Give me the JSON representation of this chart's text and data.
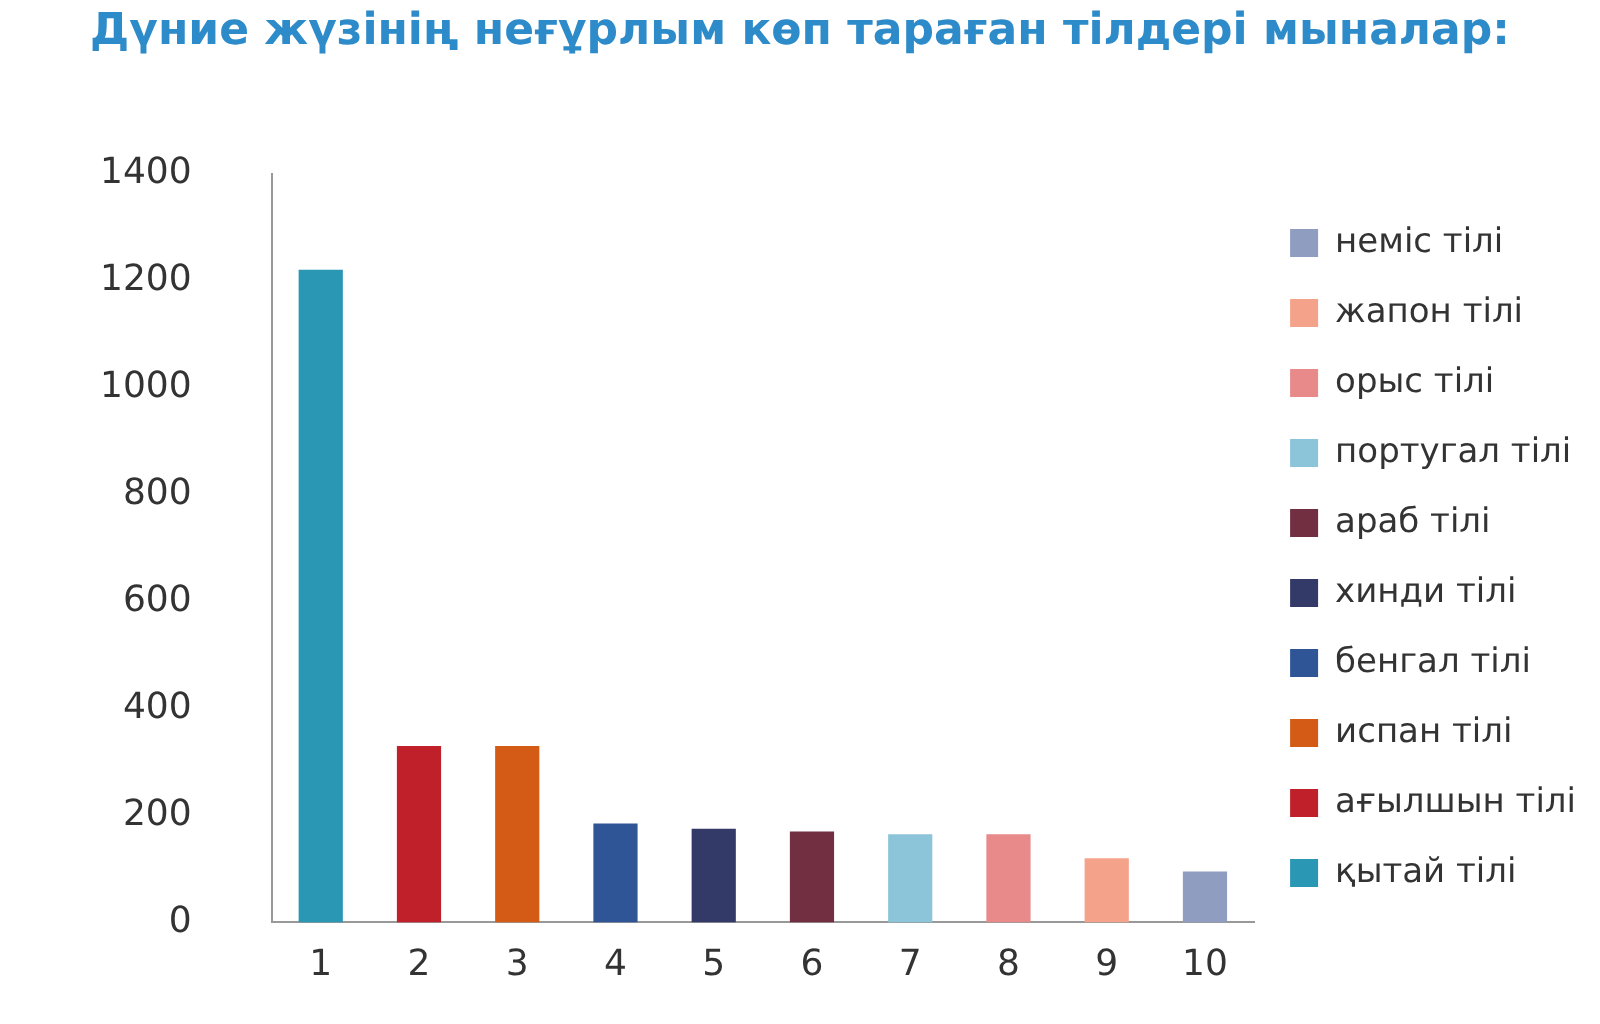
{
  "chart_data": {
    "type": "bar",
    "title": "Дүние жүзінің неғұрлым көп тараған тілдері мыналар:",
    "categories": [
      "1",
      "2",
      "3",
      "4",
      "5",
      "6",
      "7",
      "8",
      "9",
      "10"
    ],
    "series": [
      {
        "name": "қытай тілі",
        "color": "#2a97b5",
        "values": [
          1220,
          null,
          null,
          null,
          null,
          null,
          null,
          null,
          null,
          null
        ]
      },
      {
        "name": "ағылшын тілі",
        "color": "#c0202a",
        "values": [
          null,
          330,
          null,
          null,
          null,
          null,
          null,
          null,
          null,
          null
        ]
      },
      {
        "name": "испан тілі",
        "color": "#d45b16",
        "values": [
          null,
          null,
          330,
          null,
          null,
          null,
          null,
          null,
          null,
          null
        ]
      },
      {
        "name": "бенгал тілі",
        "color": "#2f5597",
        "values": [
          null,
          null,
          null,
          185,
          null,
          null,
          null,
          null,
          null,
          null
        ]
      },
      {
        "name": "хинди тілі",
        "color": "#343a68",
        "values": [
          null,
          null,
          null,
          null,
          175,
          null,
          null,
          null,
          null,
          null
        ]
      },
      {
        "name": "араб тілі",
        "color": "#722f42",
        "values": [
          null,
          null,
          null,
          null,
          null,
          170,
          null,
          null,
          null,
          null
        ]
      },
      {
        "name": "португал тілі",
        "color": "#8cc5d9",
        "values": [
          null,
          null,
          null,
          null,
          null,
          null,
          165,
          null,
          null,
          null
        ]
      },
      {
        "name": "орыс тілі",
        "color": "#e88a8a",
        "values": [
          null,
          null,
          null,
          null,
          null,
          null,
          null,
          165,
          null,
          null
        ]
      },
      {
        "name": "жапон тілі",
        "color": "#f4a38a",
        "values": [
          null,
          null,
          null,
          null,
          null,
          null,
          null,
          null,
          120,
          null
        ]
      },
      {
        "name": "неміс тілі",
        "color": "#8e9dc0",
        "values": [
          null,
          null,
          null,
          null,
          null,
          null,
          null,
          null,
          null,
          95
        ]
      }
    ],
    "ylim": [
      0,
      1400
    ],
    "yticks": [
      0,
      200,
      400,
      600,
      800,
      1000,
      1200,
      1400
    ],
    "grid": false,
    "legend": "right"
  }
}
